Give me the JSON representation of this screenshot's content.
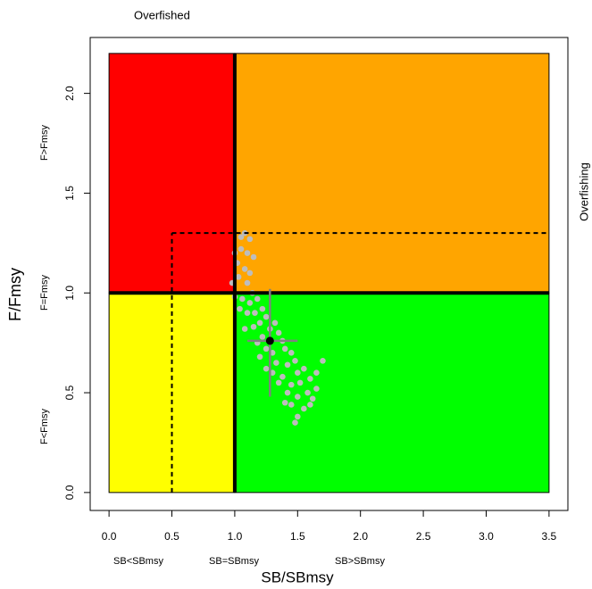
{
  "chart_data": {
    "type": "scatter",
    "title": "Overfished",
    "right_label": "Overfishing",
    "x_label": "SB/SBmsy",
    "y_label": "F/Fmsy",
    "x_zone_labels": [
      "SB<SBmsy",
      "SB=SBmsy",
      "SB>SBmsy"
    ],
    "y_zone_labels": [
      "F>Fmsy",
      "F=Fmsy",
      "F<Fmsy"
    ],
    "xlim": [
      -0.15,
      3.65
    ],
    "ylim": [
      -0.09,
      2.28
    ],
    "xticks": [
      {
        "value": 0,
        "label": "0.0"
      },
      {
        "value": 0.5,
        "label": "0.5"
      },
      {
        "value": 1,
        "label": "1.0"
      },
      {
        "value": 1.5,
        "label": "1.5"
      },
      {
        "value": 2,
        "label": "2.0"
      },
      {
        "value": 2.5,
        "label": "2.5"
      },
      {
        "value": 3,
        "label": "3.0"
      },
      {
        "value": 3.5,
        "label": "3.5"
      }
    ],
    "yticks": [
      {
        "value": 0,
        "label": "0.0"
      },
      {
        "value": 0.5,
        "label": "0.5"
      },
      {
        "value": 1,
        "label": "1.0"
      },
      {
        "value": 1.5,
        "label": "1.5"
      },
      {
        "value": 2,
        "label": "2.0"
      }
    ],
    "zones": [
      {
        "x": [
          0,
          1
        ],
        "y": [
          1,
          2.2
        ],
        "color": "#ff0000"
      },
      {
        "x": [
          1,
          3.5
        ],
        "y": [
          1,
          2.2
        ],
        "color": "#ffa500"
      },
      {
        "x": [
          0,
          1
        ],
        "y": [
          0,
          1
        ],
        "color": "#ffff00"
      },
      {
        "x": [
          1,
          3.5
        ],
        "y": [
          0,
          1
        ],
        "color": "#00ff00"
      }
    ],
    "reference_lines": [
      {
        "x": [
          1,
          1
        ],
        "y": [
          0,
          2.2
        ],
        "style": "solid"
      },
      {
        "x": [
          0,
          3.5
        ],
        "y": [
          1,
          1
        ],
        "style": "solid"
      },
      {
        "x": [
          0.5,
          0.5
        ],
        "y": [
          0,
          1.3
        ],
        "style": "dashed"
      },
      {
        "x": [
          0.5,
          3.5
        ],
        "y": [
          1.3,
          1.3
        ],
        "style": "dashed"
      }
    ],
    "series": [
      {
        "color": "#bdbdbd",
        "x": [
          1.05,
          1.08,
          1.12,
          1.0,
          1.05,
          1.1,
          1.15,
          1.02,
          1.08,
          1.12,
          0.98,
          1.03,
          1.1,
          1.14,
          1.0,
          1.06,
          1.12,
          1.18,
          1.04,
          1.1,
          1.16,
          1.22,
          1.2,
          1.25,
          1.15,
          1.28,
          1.32,
          1.22,
          1.35,
          1.38,
          1.25,
          1.3,
          1.4,
          1.45,
          1.33,
          1.42,
          1.48,
          1.3,
          1.38,
          1.5,
          1.55,
          1.35,
          1.45,
          1.52,
          1.6,
          1.65,
          1.7,
          1.42,
          1.5,
          1.58,
          1.62,
          1.45,
          1.55,
          1.5,
          1.48,
          1.6,
          1.2,
          1.18,
          1.08,
          1.25,
          1.65,
          1.4
        ],
        "y": [
          1.28,
          1.3,
          1.27,
          1.2,
          1.22,
          1.2,
          1.18,
          1.15,
          1.12,
          1.1,
          1.05,
          1.08,
          1.05,
          1.0,
          0.98,
          0.97,
          0.95,
          0.97,
          0.92,
          0.9,
          0.9,
          0.92,
          0.85,
          0.88,
          0.83,
          0.82,
          0.85,
          0.78,
          0.8,
          0.76,
          0.72,
          0.7,
          0.72,
          0.7,
          0.65,
          0.64,
          0.66,
          0.6,
          0.58,
          0.6,
          0.62,
          0.55,
          0.54,
          0.55,
          0.57,
          0.6,
          0.66,
          0.5,
          0.48,
          0.5,
          0.47,
          0.44,
          0.42,
          0.38,
          0.35,
          0.44,
          0.68,
          0.75,
          0.82,
          0.62,
          0.52,
          0.45
        ]
      }
    ],
    "estimate": {
      "x": 1.28,
      "y": 0.76,
      "x_ci": [
        1.1,
        1.5
      ],
      "y_ci": [
        0.48,
        1.02
      ],
      "color": "#000000",
      "ci_color": "#808080"
    }
  }
}
